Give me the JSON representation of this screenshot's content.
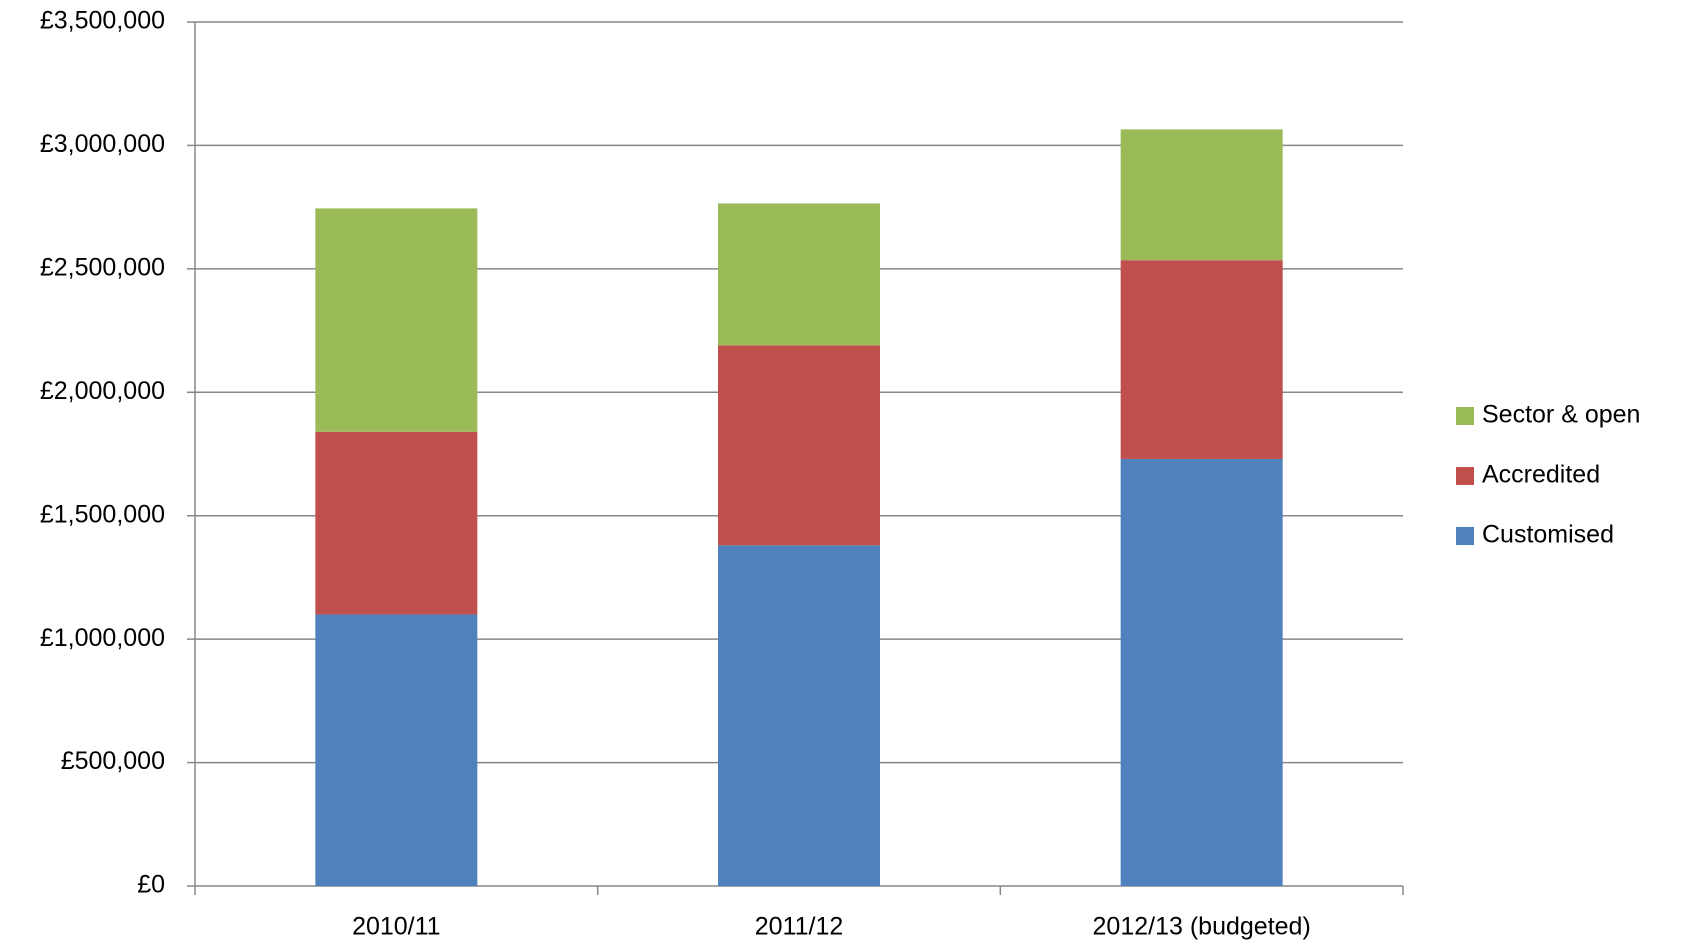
{
  "chart_data": {
    "type": "stacked-bar",
    "categories": [
      "2010/11",
      "2011/12",
      "2012/13 (budgeted)"
    ],
    "series": [
      {
        "name": "Customised",
        "color": "#4f81bd",
        "values": [
          1100000,
          1380000,
          1730000
        ]
      },
      {
        "name": "Accredited",
        "color": "#c0504d",
        "values": [
          740000,
          810000,
          805000
        ]
      },
      {
        "name": "Sector & open",
        "color": "#9bbb59",
        "values": [
          905000,
          575000,
          530000
        ]
      }
    ],
    "ylim": [
      0,
      3500000
    ],
    "yticks": [
      {
        "value": 0,
        "label": "£0"
      },
      {
        "value": 500000,
        "label": "£500,000"
      },
      {
        "value": 1000000,
        "label": "£1,000,000"
      },
      {
        "value": 1500000,
        "label": "£1,500,000"
      },
      {
        "value": 2000000,
        "label": "£2,000,000"
      },
      {
        "value": 2500000,
        "label": "£2,500,000"
      },
      {
        "value": 3000000,
        "label": "£3,000,000"
      },
      {
        "value": 3500000,
        "label": "£3,500,000"
      }
    ],
    "grid": true,
    "legend": "right"
  }
}
